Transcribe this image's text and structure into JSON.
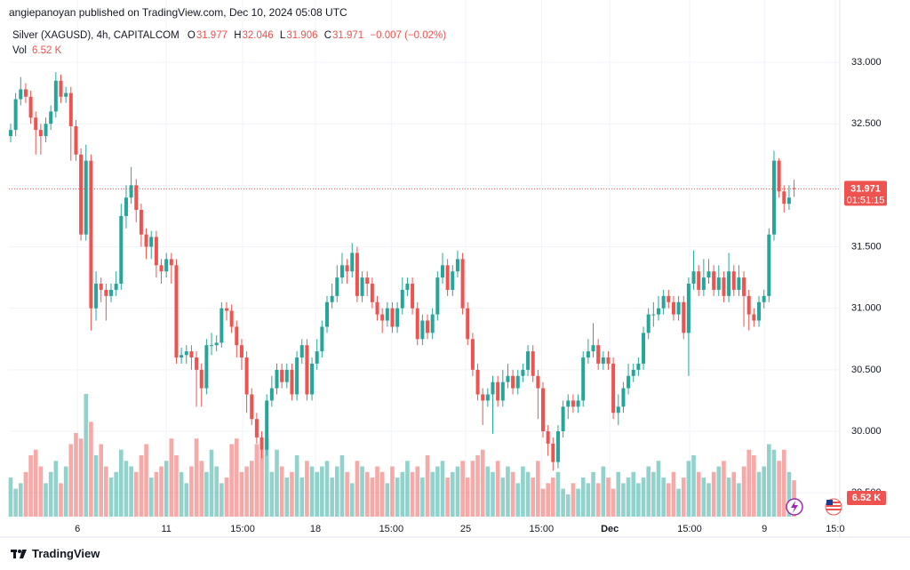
{
  "header": {
    "publisher": "angiepanoyan published on TradingView.com, Dec 10, 2024 05:08 UTC"
  },
  "legend": {
    "symbol": "Silver (XAGUSD), 4h, CAPITALCOM",
    "open_label": "O",
    "open": "31.977",
    "high_label": "H",
    "high": "32.046",
    "low_label": "L",
    "low": "31.906",
    "close_label": "C",
    "close": "31.971",
    "change": "−0.007 (−0.02%)",
    "volume_label": "Vol",
    "volume": "6.52 K"
  },
  "chart_data": {
    "type": "candlestick",
    "up_color": "#26a69a",
    "down_color": "#ef5350",
    "grid": true,
    "open": [
      32.4,
      32.45,
      32.7,
      32.78,
      32.72,
      32.55,
      32.45,
      32.4,
      32.5,
      32.6,
      32.85,
      32.72,
      32.75,
      32.48,
      32.25,
      31.6,
      32.2,
      31.0,
      31.2,
      31.15,
      31.1,
      31.15,
      31.2,
      31.75,
      31.9,
      32.0,
      31.8,
      31.6,
      31.5,
      31.58,
      31.35,
      31.3,
      31.4,
      31.35,
      30.6,
      30.62,
      30.65,
      30.6,
      30.5,
      30.35,
      30.7,
      30.7,
      30.72,
      31.0,
      30.98,
      30.85,
      30.7,
      30.6,
      30.3,
      30.1,
      29.95,
      29.85,
      30.25,
      30.35,
      30.5,
      30.4,
      30.5,
      30.3,
      30.6,
      30.7,
      30.3,
      30.55,
      30.65,
      30.85,
      31.05,
      31.1,
      31.25,
      31.35,
      31.3,
      31.45,
      31.1,
      31.25,
      31.2,
      31.05,
      30.95,
      30.9,
      31.0,
      30.85,
      31.0,
      31.15,
      31.2,
      31.0,
      30.75,
      30.9,
      30.8,
      30.95,
      31.25,
      31.35,
      31.15,
      31.3,
      31.4,
      31.0,
      30.75,
      30.5,
      30.3,
      30.25,
      30.3,
      30.4,
      30.25,
      30.4,
      30.45,
      30.35,
      30.45,
      30.5,
      30.65,
      30.45,
      30.35,
      30.0,
      29.9,
      29.75,
      30.0,
      30.2,
      30.25,
      30.2,
      30.25,
      30.6,
      30.65,
      30.7,
      30.55,
      30.6,
      30.55,
      30.15,
      30.2,
      30.35,
      30.45,
      30.5,
      30.55,
      30.8,
      30.95,
      30.95,
      31.0,
      31.1,
      31.05,
      30.95,
      31.05,
      30.8,
      31.2,
      31.3,
      31.15,
      31.25,
      31.3,
      31.15,
      31.25,
      31.1,
      31.3,
      31.15,
      31.25,
      31.1,
      30.95,
      30.9,
      31.05,
      31.1,
      31.6,
      32.2,
      31.95,
      31.85,
      31.977
    ],
    "high": [
      32.5,
      32.75,
      32.88,
      32.83,
      32.77,
      32.6,
      32.5,
      32.55,
      32.65,
      32.92,
      32.9,
      32.8,
      32.8,
      32.53,
      32.3,
      32.33,
      32.25,
      31.3,
      31.25,
      31.2,
      31.2,
      31.3,
      31.85,
      32.0,
      32.15,
      32.05,
      31.85,
      31.65,
      31.63,
      31.63,
      31.4,
      31.45,
      31.45,
      31.4,
      30.68,
      30.7,
      30.7,
      30.65,
      30.55,
      30.75,
      30.8,
      30.78,
      31.05,
      31.05,
      31.03,
      30.9,
      30.75,
      30.65,
      30.35,
      30.15,
      30.0,
      30.3,
      30.45,
      30.55,
      30.55,
      30.55,
      30.55,
      30.65,
      30.75,
      30.75,
      30.6,
      30.75,
      30.9,
      31.1,
      31.2,
      31.35,
      31.45,
      31.4,
      31.53,
      31.5,
      31.3,
      31.3,
      31.25,
      31.1,
      31.0,
      31.05,
      31.05,
      31.05,
      31.25,
      31.25,
      31.25,
      31.05,
      30.95,
      30.95,
      31.0,
      31.3,
      31.45,
      31.4,
      31.35,
      31.47,
      31.45,
      31.05,
      30.8,
      30.55,
      30.35,
      30.35,
      30.45,
      30.45,
      30.5,
      30.55,
      30.5,
      30.5,
      30.55,
      30.7,
      30.7,
      30.5,
      30.4,
      30.05,
      29.95,
      30.05,
      30.25,
      30.3,
      30.3,
      30.3,
      30.65,
      30.75,
      30.88,
      30.75,
      30.65,
      30.65,
      30.6,
      30.3,
      30.4,
      30.55,
      30.55,
      30.6,
      30.85,
      31.0,
      31.05,
      31.1,
      31.15,
      31.15,
      31.1,
      31.1,
      31.1,
      31.25,
      31.47,
      31.35,
      31.4,
      31.4,
      31.35,
      31.35,
      31.3,
      31.45,
      31.35,
      31.35,
      31.3,
      31.15,
      31.0,
      31.1,
      31.15,
      31.65,
      32.28,
      32.22,
      32.0,
      32.0,
      32.046
    ],
    "low": [
      32.35,
      32.4,
      32.65,
      32.67,
      32.5,
      32.25,
      32.25,
      32.35,
      32.45,
      32.55,
      32.67,
      32.67,
      32.2,
      32.2,
      31.55,
      31.55,
      30.82,
      30.9,
      31.05,
      30.9,
      31.05,
      31.1,
      31.15,
      31.65,
      31.85,
      31.7,
      31.5,
      31.4,
      31.4,
      31.25,
      31.2,
      31.25,
      31.2,
      30.55,
      30.55,
      30.55,
      30.5,
      30.2,
      30.2,
      30.3,
      30.62,
      30.65,
      30.68,
      30.9,
      30.8,
      30.6,
      30.5,
      30.15,
      30.05,
      29.9,
      29.78,
      29.8,
      30.2,
      30.3,
      30.35,
      30.35,
      30.25,
      30.25,
      30.55,
      30.25,
      30.25,
      30.5,
      30.6,
      30.8,
      31.0,
      31.05,
      31.2,
      31.2,
      31.25,
      31.05,
      31.05,
      31.1,
      31.0,
      30.9,
      30.8,
      30.85,
      30.8,
      30.8,
      30.95,
      31.1,
      30.95,
      30.7,
      30.7,
      30.75,
      30.75,
      30.9,
      31.2,
      31.1,
      31.1,
      31.25,
      30.95,
      30.7,
      30.45,
      30.25,
      30.05,
      30.2,
      29.98,
      30.2,
      30.2,
      30.35,
      30.3,
      30.3,
      30.4,
      30.45,
      30.4,
      30.1,
      29.95,
      29.8,
      29.68,
      29.7,
      29.95,
      30.1,
      30.15,
      30.15,
      30.2,
      30.55,
      30.6,
      30.5,
      30.5,
      30.5,
      30.1,
      30.05,
      30.15,
      30.3,
      30.4,
      30.45,
      30.5,
      30.75,
      30.85,
      30.9,
      30.95,
      31.0,
      30.9,
      30.9,
      30.75,
      30.45,
      31.15,
      31.1,
      31.1,
      31.2,
      31.1,
      31.1,
      31.05,
      31.05,
      31.1,
      31.1,
      30.85,
      30.82,
      30.85,
      30.85,
      31.0,
      31.05,
      31.55,
      31.9,
      31.78,
      31.8,
      31.906
    ],
    "close": [
      32.45,
      32.7,
      32.78,
      32.72,
      32.55,
      32.45,
      32.4,
      32.5,
      32.6,
      32.85,
      32.72,
      32.75,
      32.48,
      32.25,
      31.6,
      32.2,
      31.0,
      31.2,
      31.15,
      31.1,
      31.15,
      31.2,
      31.75,
      31.9,
      32.0,
      31.8,
      31.6,
      31.5,
      31.58,
      31.35,
      31.3,
      31.4,
      31.35,
      30.6,
      30.62,
      30.65,
      30.6,
      30.5,
      30.35,
      30.7,
      30.7,
      30.72,
      31.0,
      30.98,
      30.85,
      30.7,
      30.6,
      30.3,
      30.1,
      29.95,
      29.85,
      30.25,
      30.35,
      30.5,
      30.4,
      30.5,
      30.3,
      30.6,
      30.7,
      30.3,
      30.55,
      30.65,
      30.85,
      31.05,
      31.1,
      31.25,
      31.35,
      31.3,
      31.45,
      31.1,
      31.25,
      31.2,
      31.05,
      30.95,
      30.9,
      31.0,
      30.85,
      31.0,
      31.15,
      31.2,
      31.0,
      30.75,
      30.9,
      30.8,
      30.95,
      31.25,
      31.35,
      31.15,
      31.3,
      31.4,
      31.0,
      30.75,
      30.5,
      30.3,
      30.25,
      30.3,
      30.4,
      30.25,
      30.4,
      30.45,
      30.35,
      30.45,
      30.5,
      30.65,
      30.45,
      30.35,
      30.0,
      29.9,
      29.75,
      30.0,
      30.2,
      30.25,
      30.2,
      30.25,
      30.6,
      30.65,
      30.7,
      30.55,
      30.6,
      30.55,
      30.15,
      30.2,
      30.35,
      30.45,
      30.5,
      30.55,
      30.8,
      30.95,
      30.95,
      31.0,
      31.1,
      31.05,
      30.95,
      31.05,
      30.8,
      31.2,
      31.3,
      31.15,
      31.25,
      31.3,
      31.15,
      31.25,
      31.1,
      31.3,
      31.15,
      31.25,
      31.1,
      30.95,
      30.9,
      31.05,
      31.1,
      31.6,
      32.2,
      31.95,
      31.85,
      31.9,
      31.971
    ],
    "volume": [
      7,
      5,
      6,
      8,
      11,
      12,
      9,
      6,
      8,
      10,
      6,
      9,
      13,
      15,
      14,
      22,
      17,
      11,
      13,
      9,
      7,
      8,
      12,
      10,
      9,
      8,
      11,
      13,
      7,
      8,
      9,
      10,
      14,
      11,
      8,
      6,
      9,
      14,
      10,
      8,
      12,
      9,
      6,
      7,
      13,
      14,
      8,
      9,
      10,
      13,
      12,
      14,
      8,
      12,
      9,
      7,
      8,
      11,
      7,
      10,
      9,
      8,
      9,
      10,
      7,
      9,
      11,
      8,
      6,
      10,
      9,
      8,
      7,
      9,
      8,
      6,
      9,
      7,
      8,
      10,
      8,
      9,
      7,
      11,
      8,
      9,
      10,
      7,
      8,
      9,
      10,
      7,
      10,
      11,
      12,
      9,
      8,
      10,
      7,
      9,
      8,
      6,
      9,
      8,
      7,
      10,
      5,
      6,
      7,
      8,
      5,
      4,
      6,
      5,
      7,
      6,
      8,
      6,
      9,
      7,
      5,
      8,
      6,
      7,
      8,
      6,
      7,
      9,
      8,
      10,
      7,
      6,
      8,
      5,
      7,
      10,
      11,
      8,
      7,
      6,
      8,
      9,
      10,
      7,
      8,
      6,
      9,
      12,
      11,
      8,
      9,
      13,
      12,
      10,
      12,
      8,
      6.52
    ],
    "ylim": [
      29.306,
      33.304
    ],
    "yticks": [
      {
        "value": 33,
        "label": "33.000"
      },
      {
        "value": 32.5,
        "label": "32.500"
      },
      {
        "value": 32,
        "label": "32.000"
      },
      {
        "value": 31.5,
        "label": "31.500"
      },
      {
        "value": 31,
        "label": "31.000"
      },
      {
        "value": 30.5,
        "label": "30.500"
      },
      {
        "value": 30,
        "label": "30.000"
      },
      {
        "value": 29.5,
        "label": "29.500"
      }
    ],
    "xlim": [
      -0.35,
      165.1
    ],
    "xticks": [
      {
        "value": 13.3,
        "label": "6"
      },
      {
        "value": 31,
        "label": "11"
      },
      {
        "value": 46.2,
        "label": "15:00"
      },
      {
        "value": 60.7,
        "label": "18"
      },
      {
        "value": 75.8,
        "label": "15:00"
      },
      {
        "value": 90.6,
        "label": "25"
      },
      {
        "value": 105.7,
        "label": "15:00"
      },
      {
        "value": 119.3,
        "label": "Dec"
      },
      {
        "value": 135.2,
        "label": "15:00"
      },
      {
        "value": 150.1,
        "label": "9"
      },
      {
        "value": 164.2,
        "label": "15:0"
      }
    ],
    "last_price": {
      "label": "31.971",
      "countdown": "01:51:15"
    },
    "volume_tag": "6.52 K"
  },
  "footer": {
    "brand": "TradingView"
  }
}
